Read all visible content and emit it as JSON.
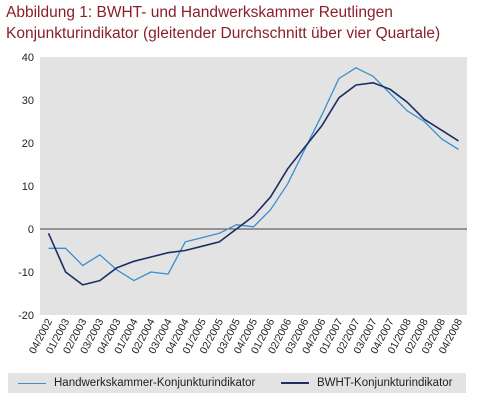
{
  "chart_data": {
    "type": "line",
    "title": "Abbildung 1: BWHT- und Handwerkskammer  Reutlingen",
    "subtitle": "Konjunkturindikator (gleitender Durchschnitt über vier Quartale)",
    "xlabel": "",
    "ylabel": "",
    "ylim": [
      -20,
      40
    ],
    "yticks": [
      -20,
      -10,
      0,
      10,
      20,
      30,
      40
    ],
    "grid": false,
    "legend_position": "bottom",
    "x": [
      "04/2002",
      "01/2003",
      "02/2003",
      "03/2003",
      "04/2003",
      "01/2004",
      "02/2004",
      "03/2004",
      "04/2004",
      "01/2005",
      "02/2005",
      "03/2005",
      "04/2005",
      "01/2006",
      "02/2006",
      "03/2006",
      "04/2006",
      "01/2007",
      "02/2007",
      "03/2007",
      "04/2007",
      "01/2008",
      "02/2008",
      "03/2008",
      "04/2008"
    ],
    "series": [
      {
        "name": "Handwerkskammer-Konjunkturindikator",
        "color": "#3a8fd0",
        "values": [
          -4.5,
          -4.5,
          -8.5,
          -6,
          -9.5,
          -12,
          -10,
          -10.5,
          -3,
          -2,
          -1,
          1,
          0.5,
          4.5,
          10.5,
          18.5,
          26.5,
          35,
          37.5,
          35.5,
          31.5,
          27.5,
          25,
          21,
          18.5
        ]
      },
      {
        "name": "BWHT-Konjunkturindikator",
        "color": "#1b2f63",
        "values": [
          -1,
          -10,
          -13,
          -12,
          -9,
          -7.5,
          -6.5,
          -5.5,
          -5,
          -4,
          -3,
          0,
          3,
          7.5,
          14,
          19,
          24,
          30.5,
          33.5,
          34,
          32.5,
          29.5,
          25.5,
          23,
          20.5
        ]
      }
    ]
  }
}
